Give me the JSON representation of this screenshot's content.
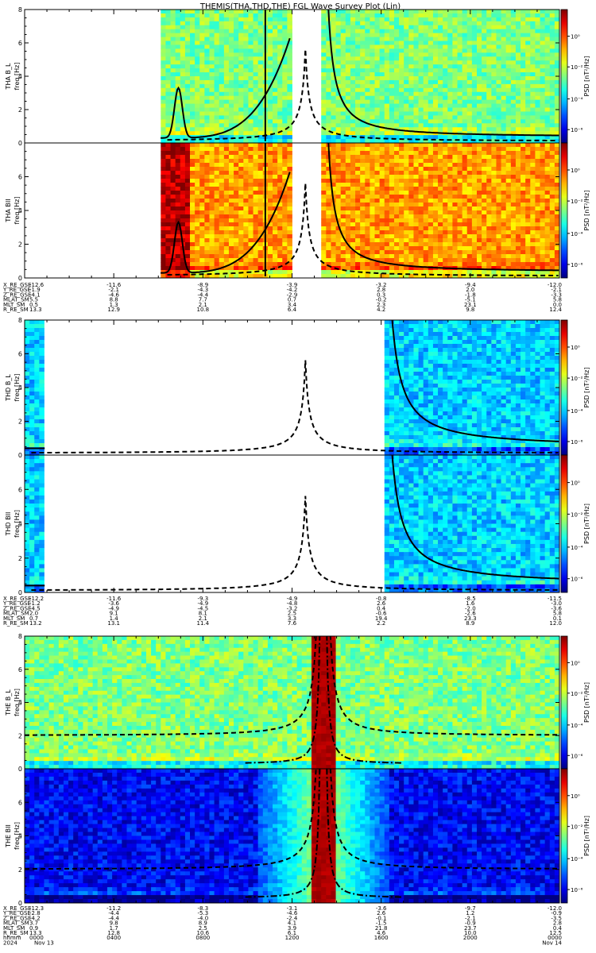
{
  "title": "THEMIS(THA,THD,THE) FGL Wave Survey Plot (Lin)",
  "chart_data": [
    {
      "type": "heatmap",
      "probe": "THA",
      "panels": [
        {
          "label": "THA B_L",
          "ylabel": "freq [Hz]",
          "ylim": [
            0,
            8
          ],
          "yticks": [
            "0",
            "2",
            "4",
            "6",
            "8"
          ],
          "cbar_label": "PSD [nT²/Hz]",
          "cbar_ticks": [
            "10⁰",
            "10⁻²",
            "10⁻⁴",
            "10⁻⁶"
          ],
          "data_start_hour": 6.1,
          "gap_hours": [
            12.0,
            13.3
          ],
          "intensity": "moderate",
          "curves": [
            {
              "style": "solid",
              "peak_hour": 6.9,
              "peak_freq": 3.0
            },
            {
              "style": "solid",
              "asymptote_hour": 10.8
            },
            {
              "style": "dashed"
            }
          ]
        },
        {
          "label": "THA BII",
          "ylabel": "freq [Hz]",
          "ylim": [
            0,
            8
          ],
          "yticks": [
            "0",
            "2",
            "4",
            "6",
            "8"
          ],
          "cbar_label": "PSD [nT²/Hz]",
          "cbar_ticks": [
            "10⁰",
            "10⁻²",
            "10⁻⁴",
            "10⁻⁶"
          ],
          "data_start_hour": 6.1,
          "gap_hours": [
            12.0,
            13.3
          ],
          "intensity": "high",
          "curves": [
            {
              "style": "solid",
              "peak_hour": 6.9,
              "peak_freq": 3.0
            },
            {
              "style": "solid",
              "asymptote_hour": 10.8
            },
            {
              "style": "dashed"
            }
          ]
        }
      ],
      "ephemeris": {
        "rows": [
          {
            "label": "X_RE_GSE",
            "values": [
              "-12.6",
              "-11.6",
              "-8.9",
              "-3.9",
              "-3.2",
              "-9.4",
              "-12.0"
            ]
          },
          {
            "label": "Y_RE_GSE",
            "values": [
              "-1.9",
              "-2.1",
              "-4.3",
              "-4.2",
              "2.8",
              "2.0",
              "-2.1"
            ]
          },
          {
            "label": "Z_RE_GSE",
            "values": [
              "-4.1",
              "-4.6",
              "-4.4",
              "-2.9",
              "0.3",
              "-1.8",
              "-3.3"
            ]
          },
          {
            "label": "MLAT_SM",
            "values": [
              "5.5",
              "8.8",
              "7.7",
              "0.7",
              "-0.2",
              "-5.1",
              "5.8"
            ]
          },
          {
            "label": "MLT_SM",
            "values": [
              "0.5",
              "1.3",
              "2.1",
              "3.4",
              "2.3",
              "23.1",
              "0.0"
            ]
          },
          {
            "label": "R_RE_SM",
            "values": [
              "13.3",
              "12.9",
              "10.8",
              "6.4",
              "4.2",
              "9.8",
              "12.4"
            ]
          }
        ]
      }
    },
    {
      "type": "heatmap",
      "probe": "THD",
      "panels": [
        {
          "label": "THD B_L",
          "ylabel": "freq [Hz]",
          "ylim": [
            0,
            8
          ],
          "yticks": [
            "0",
            "2",
            "4",
            "6",
            "8"
          ],
          "cbar_label": "PSD [nT²/Hz]",
          "cbar_ticks": [
            "10⁰",
            "10⁻²",
            "10⁻⁴",
            "10⁻⁶"
          ],
          "data_segments_hours": [
            [
              0.0,
              0.9
            ],
            [
              16.1,
              24.0
            ]
          ],
          "intensity": "low",
          "curves": [
            {
              "style": "solid",
              "decay_from_hour": 16.1
            },
            {
              "style": "dashed"
            }
          ]
        },
        {
          "label": "THD BII",
          "ylabel": "freq [Hz]",
          "ylim": [
            0,
            8
          ],
          "yticks": [
            "0",
            "2",
            "4",
            "6",
            "8"
          ],
          "cbar_label": "PSD [nT²/Hz]",
          "cbar_ticks": [
            "10⁰",
            "10⁻²",
            "10⁻⁴",
            "10⁻⁶"
          ],
          "data_segments_hours": [
            [
              0.0,
              0.9
            ],
            [
              16.1,
              24.0
            ]
          ],
          "intensity": "low",
          "curves": [
            {
              "style": "solid",
              "decay_from_hour": 16.1
            },
            {
              "style": "dashed"
            }
          ]
        }
      ],
      "ephemeris": {
        "rows": [
          {
            "label": "X_RE_GSE",
            "values": [
              "-12.2",
              "-11.6",
              "-9.3",
              "-4.9",
              "-0.8",
              "-8.5",
              "-11.5"
            ]
          },
          {
            "label": "Y_RE_GSE",
            "values": [
              "-1.2",
              "-3.6",
              "-4.9",
              "-4.8",
              "2.6",
              "1.6",
              "-3.0"
            ]
          },
          {
            "label": "Z_RE_GSE",
            "values": [
              "-4.5",
              "-4.9",
              "-4.5",
              "-3.2",
              "0.4",
              "-2.0",
              "-3.6"
            ]
          },
          {
            "label": "MLAT_SM",
            "values": [
              "2.0",
              "9.1",
              "8.1",
              "2.5",
              "-0.6",
              "-2.6",
              "5.8"
            ]
          },
          {
            "label": "MLT_SM",
            "values": [
              "0.7",
              "1.4",
              "2.1",
              "3.3",
              "19.4",
              "23.3",
              "0.1"
            ]
          },
          {
            "label": "R_RE_SM",
            "values": [
              "13.2",
              "13.1",
              "11.4",
              "7.6",
              "2.2",
              "8.9",
              "12.0"
            ]
          }
        ]
      }
    },
    {
      "type": "heatmap",
      "probe": "THE",
      "panels": [
        {
          "label": "THE B_L",
          "ylabel": "freq [Hz]",
          "ylim": [
            0,
            8
          ],
          "yticks": [
            "0",
            "2",
            "4",
            "6",
            "8"
          ],
          "cbar_label": "PSD [nT²/Hz]",
          "cbar_ticks": [
            "10⁰",
            "10⁻²",
            "10⁻⁴",
            "10⁻⁶"
          ],
          "intensity": "moderate",
          "hot_band_hours": [
            12.9,
            13.9
          ],
          "curves": [
            {
              "style": "dashdot",
              "center_hour": 13.4
            },
            {
              "style": "dashed",
              "base_freq": 2.0
            }
          ]
        },
        {
          "label": "THE BII",
          "ylabel": "freq [Hz]",
          "ylim": [
            0,
            8
          ],
          "yticks": [
            "0",
            "2",
            "4",
            "6",
            "8"
          ],
          "cbar_label": "PSD [nT²/Hz]",
          "cbar_ticks": [
            "10⁰",
            "10⁻²",
            "10⁻⁴",
            "10⁻⁶"
          ],
          "intensity": "very-low",
          "hot_band_hours": [
            12.9,
            13.9
          ],
          "curves": [
            {
              "style": "dashdot",
              "center_hour": 13.4
            },
            {
              "style": "dashed",
              "base_freq": 2.0
            }
          ]
        }
      ],
      "ephemeris": {
        "rows": [
          {
            "label": "X_RE_GSE",
            "values": [
              "-12.3",
              "-11.2",
              "-8.3",
              "-3.1",
              "-3.6",
              "-9.7",
              "-12.0"
            ]
          },
          {
            "label": "Y_RE_GSE",
            "values": [
              "-2.8",
              "-4.4",
              "-5.3",
              "-4.6",
              "2.6",
              "1.2",
              "-0.9"
            ]
          },
          {
            "label": "Z_RE_GSE",
            "values": [
              "-4.2",
              "-4.4",
              "-4.0",
              "-2.4",
              "-0.1",
              "-2.1",
              "-3.5"
            ]
          },
          {
            "label": "MLAT_SM",
            "values": [
              "3.7",
              "9.8",
              "8.9",
              "4.1",
              "-1.5",
              "-0.9",
              "2.8"
            ]
          },
          {
            "label": "MLT_SM",
            "values": [
              "0.9",
              "1.7",
              "2.5",
              "3.9",
              "21.8",
              "23.7",
              "0.4"
            ]
          },
          {
            "label": "R_RE_SM",
            "values": [
              "13.3",
              "12.8",
              "10.6",
              "6.1",
              "4.6",
              "10.0",
              "12.5"
            ]
          },
          {
            "label": "hhmm",
            "values": [
              "0000",
              "0400",
              "0800",
              "1200",
              "1600",
              "2000",
              "0000"
            ]
          }
        ],
        "dates": {
          "year": "2024",
          "start": "Nov 13",
          "end": "Nov 14"
        }
      }
    }
  ]
}
